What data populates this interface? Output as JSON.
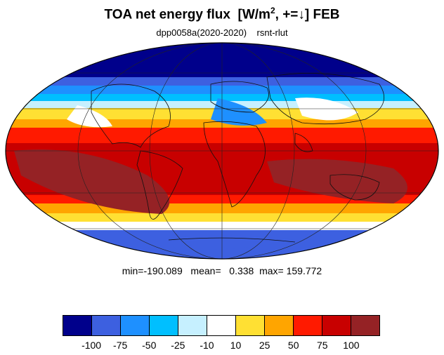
{
  "title": {
    "main": "TOA net energy flux  [W/m",
    "sup": "2",
    "rest": ", +=↓] FEB"
  },
  "subtitle": "dpp0058a(2020-2020)    rsnt-rlut",
  "stats": "min=-190.089   mean=   0.338  max= 159.772",
  "colorbar": {
    "colors": [
      "#00008b",
      "#3d60e0",
      "#1e90ff",
      "#00bfff",
      "#c6f0ff",
      "#ffffff",
      "#ffe033",
      "#ffa500",
      "#ff1a00",
      "#c80000",
      "#952225"
    ],
    "labels": [
      "-100",
      "-75",
      "-50",
      "-25",
      "-10",
      "10",
      "25",
      "50",
      "75",
      "100"
    ]
  },
  "map": {
    "projection": "mollweide",
    "field": "rsnt-rlut",
    "month": "FEB"
  }
}
